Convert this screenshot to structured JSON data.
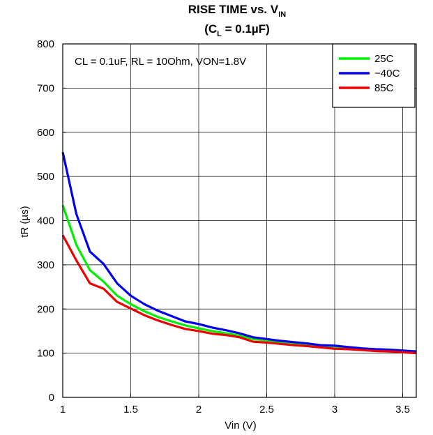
{
  "chart_data": {
    "type": "line",
    "title": {
      "line1_main": "RISE TIME vs. V",
      "line1_sub": "IN",
      "line2_pre": "(C",
      "line2_sub": "L",
      "line2_post": " = 0.1µF)"
    },
    "annotation": "CL = 0.1uF, RL = 10Ohm, VON=1.8V",
    "xlabel": "Vin (V)",
    "ylabel": "tR (µs)",
    "xlim": [
      1,
      3.6
    ],
    "ylim": [
      0,
      800
    ],
    "xticks": [
      1,
      1.5,
      2,
      2.5,
      3,
      3.5
    ],
    "xtick_labels": [
      "1",
      "1.5",
      "2",
      "2.5",
      "3",
      "3.5"
    ],
    "yticks": [
      0,
      100,
      200,
      300,
      400,
      500,
      600,
      700,
      800
    ],
    "ytick_labels": [
      "0",
      "100",
      "200",
      "300",
      "400",
      "500",
      "600",
      "700",
      "800"
    ],
    "grid": true,
    "legend_position": "top-right",
    "x": [
      1.0,
      1.1,
      1.2,
      1.3,
      1.4,
      1.5,
      1.6,
      1.7,
      1.8,
      1.9,
      2.0,
      2.1,
      2.2,
      2.3,
      2.4,
      2.5,
      2.6,
      2.7,
      2.8,
      2.9,
      3.0,
      3.1,
      3.2,
      3.3,
      3.4,
      3.5,
      3.6
    ],
    "series": [
      {
        "name": "25C",
        "color": "#00ee00",
        "values": [
          435,
          345,
          288,
          262,
          230,
          211,
          195,
          182,
          172,
          163,
          156,
          150,
          145,
          140,
          132,
          129,
          125,
          122,
          119,
          116,
          113,
          111,
          109,
          107,
          105,
          103,
          101
        ]
      },
      {
        "name": "−40C",
        "color": "#0000ee",
        "values": [
          555,
          415,
          330,
          302,
          258,
          230,
          211,
          196,
          184,
          172,
          166,
          158,
          152,
          145,
          136,
          132,
          128,
          125,
          122,
          118,
          117,
          114,
          111,
          109,
          108,
          106,
          104
        ]
      },
      {
        "name": "85C",
        "color": "#ee0000",
        "values": [
          367,
          310,
          258,
          246,
          216,
          201,
          186,
          174,
          164,
          155,
          150,
          144,
          141,
          136,
          126,
          124,
          121,
          118,
          116,
          113,
          110,
          109,
          107,
          105,
          104,
          102,
          100
        ]
      }
    ]
  }
}
